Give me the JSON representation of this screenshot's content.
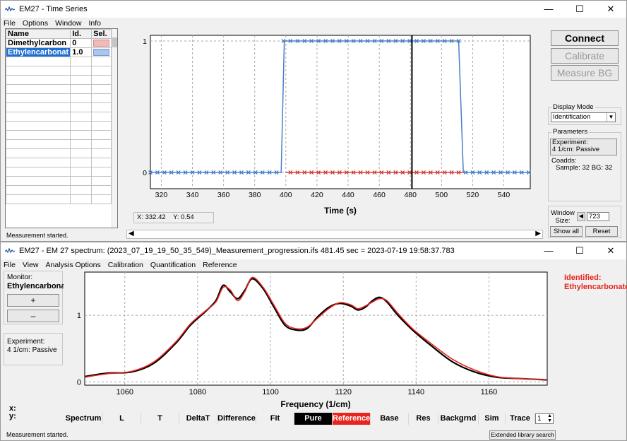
{
  "top_window": {
    "title": "EM27 - Time Series",
    "menu": [
      "File",
      "Options",
      "Window",
      "Info"
    ],
    "library": {
      "headers": [
        "Name",
        "Id.",
        "Sel."
      ],
      "rows": [
        {
          "name": "Dimethylcarbon",
          "id": "0",
          "sel_color": "#f2b9b9"
        },
        {
          "name": "Ethylencarbonat",
          "id": "1.0",
          "sel_color": "#a9c6ee",
          "selected": true
        }
      ]
    },
    "buttons": {
      "connect": "Connect",
      "calibrate": "Calibrate",
      "measure_bg": "Measure BG"
    },
    "display_mode": {
      "label": "Display Mode",
      "value": "Identification"
    },
    "parameters": {
      "label": "Parameters",
      "experiment_button": "Experiment:\n4 1/cm: Passive",
      "coadds_label": "Coadds:",
      "coadds_value": "Sample: 32  BG: 32"
    },
    "window_size": {
      "label": "Window Size:",
      "value": "723",
      "show_all": "Show all",
      "reset": "Reset"
    },
    "coords": {
      "x": "X: 332.42",
      "y": "Y: 0.54"
    },
    "status": "Measurement started.",
    "chart_data": {
      "type": "line",
      "xlabel": "Time (s)",
      "xticks": [
        320,
        340,
        360,
        380,
        400,
        420,
        440,
        460,
        480,
        500,
        520,
        540
      ],
      "yticks": [
        0,
        1
      ],
      "xlim": [
        313,
        557
      ],
      "ylim": [
        0,
        1
      ],
      "marker_x": 481,
      "series": [
        {
          "color": "#4a7ec8",
          "x": [
            313,
            397,
            399,
            477,
            481,
            483,
            511,
            514,
            557
          ],
          "y": [
            0,
            0,
            1,
            1,
            1,
            1,
            1,
            0,
            0
          ]
        },
        {
          "color": "#d04040",
          "x": [
            400,
            514
          ],
          "y": [
            0,
            0
          ]
        }
      ]
    }
  },
  "bottom_window": {
    "title": "EM27 - EM 27 spectrum: (2023_07_19_19_50_35_549)_Measurement_progression.ifs 481.45 sec = 2023-07-19 19:58:37.783",
    "menu": [
      "File",
      "View",
      "Analysis Options",
      "Calibration",
      "Quantification",
      "Reference"
    ],
    "monitor_label": "Monitor:",
    "monitor_value": "Ethylencarbona",
    "plus": "+",
    "minus": "–",
    "experiment": "Experiment:\n4 1/cm: Passive",
    "identified_label": "Identified:",
    "identified_value": "Ethylencarbonate",
    "xy": {
      "x": "x:",
      "y": "y:"
    },
    "toolbar": [
      "Spectrum",
      "L",
      "T",
      "DeltaT",
      "Difference",
      "Fit",
      "Pure",
      "Reference",
      "Base",
      "Res",
      "Backgrnd",
      "Sim",
      "Trace"
    ],
    "trace_value": "1",
    "status": "Measurement started.",
    "ext_search": "Extended library search",
    "chart_data": {
      "type": "line",
      "xlabel": "Frequency (1/cm)",
      "xticks": [
        1060,
        1080,
        1100,
        1120,
        1140,
        1160
      ],
      "yticks": [
        0,
        1
      ],
      "xlim": [
        1049,
        1176
      ],
      "ylim": [
        -0.05,
        1.65
      ],
      "series": [
        {
          "color": "#000000",
          "x": [
            1049,
            1055,
            1062,
            1068,
            1074,
            1078,
            1082,
            1085,
            1087,
            1089,
            1091,
            1093,
            1095,
            1098,
            1101,
            1104,
            1107,
            1110,
            1113,
            1116,
            1119,
            1122,
            1124,
            1126,
            1128,
            1130,
            1132,
            1135,
            1139,
            1144,
            1150,
            1156,
            1162,
            1168,
            1176
          ],
          "y": [
            0.08,
            0.13,
            0.15,
            0.28,
            0.58,
            0.85,
            1.05,
            1.22,
            1.45,
            1.35,
            1.25,
            1.38,
            1.55,
            1.4,
            1.12,
            0.85,
            0.78,
            0.8,
            0.98,
            1.12,
            1.18,
            1.14,
            1.08,
            1.12,
            1.22,
            1.27,
            1.2,
            1.0,
            0.78,
            0.55,
            0.3,
            0.15,
            0.07,
            0.05,
            0.03
          ]
        },
        {
          "color": "#e8241e",
          "x": [
            1049,
            1055,
            1062,
            1068,
            1074,
            1078,
            1082,
            1085,
            1087,
            1089,
            1091,
            1093,
            1095,
            1098,
            1101,
            1104,
            1107,
            1110,
            1113,
            1116,
            1119,
            1122,
            1124,
            1126,
            1128,
            1130,
            1132,
            1135,
            1139,
            1144,
            1150,
            1156,
            1162,
            1168,
            1176
          ],
          "y": [
            0.07,
            0.12,
            0.16,
            0.3,
            0.6,
            0.87,
            1.06,
            1.2,
            1.42,
            1.38,
            1.22,
            1.36,
            1.57,
            1.42,
            1.15,
            0.88,
            0.8,
            0.82,
            0.96,
            1.1,
            1.19,
            1.16,
            1.1,
            1.14,
            1.2,
            1.25,
            1.22,
            1.03,
            0.8,
            0.58,
            0.34,
            0.18,
            0.08,
            0.05,
            0.03
          ]
        }
      ]
    }
  }
}
